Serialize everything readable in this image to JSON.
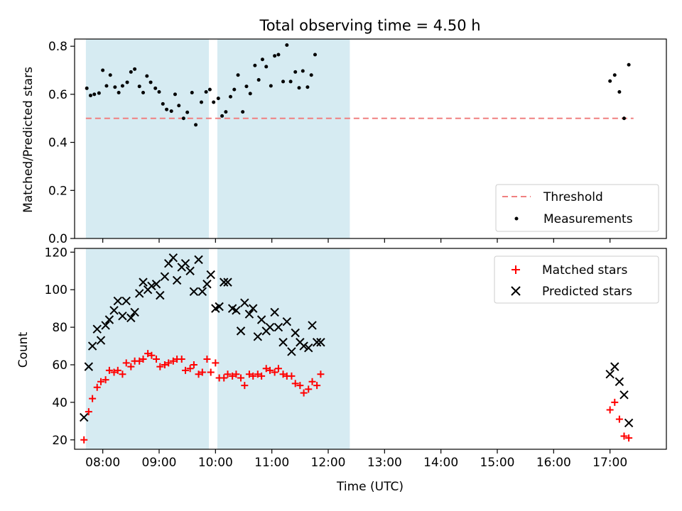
{
  "chart_data": [
    {
      "type": "scatter",
      "title": "Total observing time = 4.50 h",
      "ylabel": "Matched/Predicted stars",
      "xlabel": "",
      "xlim": [
        "07:30",
        "18:00"
      ],
      "ylim": [
        0,
        0.83
      ],
      "yticks": [
        "0.0",
        "0.2",
        "0.4",
        "0.6",
        "0.8"
      ],
      "yticks_values": [
        0,
        0.2,
        0.4,
        0.6,
        0.8
      ],
      "shaded_intervals": [
        [
          "07:42",
          "09:53"
        ],
        [
          "10:02",
          "12:23"
        ]
      ],
      "shade_color": "#add8e6",
      "legend_position": "lower-right",
      "threshold": {
        "name": "Threshold",
        "value": 0.5,
        "x_range": [
          "07:42",
          "17:25"
        ],
        "color": "#f08080"
      },
      "series": [
        {
          "name": "Measurements",
          "color": "#000000",
          "points": [
            [
              "07:43",
              0.625
            ],
            [
              "07:47",
              0.595
            ],
            [
              "07:51",
              0.6
            ],
            [
              "07:56",
              0.605
            ],
            [
              "08:00",
              0.7
            ],
            [
              "08:04",
              0.635
            ],
            [
              "08:08",
              0.68
            ],
            [
              "08:13",
              0.63
            ],
            [
              "08:17",
              0.607
            ],
            [
              "08:21",
              0.635
            ],
            [
              "08:26",
              0.65
            ],
            [
              "08:30",
              0.693
            ],
            [
              "08:34",
              0.705
            ],
            [
              "08:39",
              0.633
            ],
            [
              "08:43",
              0.607
            ],
            [
              "08:47",
              0.676
            ],
            [
              "08:51",
              0.65
            ],
            [
              "08:56",
              0.625
            ],
            [
              "09:00",
              0.61
            ],
            [
              "09:04",
              0.56
            ],
            [
              "09:08",
              0.537
            ],
            [
              "09:13",
              0.53
            ],
            [
              "09:17",
              0.6
            ],
            [
              "09:21",
              0.553
            ],
            [
              "09:26",
              0.5
            ],
            [
              "09:30",
              0.525
            ],
            [
              "09:35",
              0.607
            ],
            [
              "09:39",
              0.473
            ],
            [
              "09:45",
              0.567
            ],
            [
              "09:50",
              0.61
            ],
            [
              "09:54",
              0.62
            ],
            [
              "09:58",
              0.567
            ],
            [
              "10:03",
              0.583
            ],
            [
              "10:07",
              0.51
            ],
            [
              "10:11",
              0.527
            ],
            [
              "10:16",
              0.59
            ],
            [
              "10:20",
              0.62
            ],
            [
              "10:24",
              0.68
            ],
            [
              "10:29",
              0.527
            ],
            [
              "10:33",
              0.633
            ],
            [
              "10:37",
              0.603
            ],
            [
              "10:42",
              0.72
            ],
            [
              "10:46",
              0.66
            ],
            [
              "10:50",
              0.745
            ],
            [
              "10:54",
              0.715
            ],
            [
              "10:59",
              0.635
            ],
            [
              "11:03",
              0.76
            ],
            [
              "11:07",
              0.765
            ],
            [
              "11:12",
              0.653
            ],
            [
              "11:16",
              0.805
            ],
            [
              "11:20",
              0.653
            ],
            [
              "11:25",
              0.693
            ],
            [
              "11:29",
              0.627
            ],
            [
              "11:33",
              0.697
            ],
            [
              "11:38",
              0.63
            ],
            [
              "11:42",
              0.68
            ],
            [
              "11:46",
              0.765
            ],
            [
              "17:00",
              0.655
            ],
            [
              "17:05",
              0.68
            ],
            [
              "17:10",
              0.61
            ],
            [
              "17:15",
              0.5
            ],
            [
              "17:20",
              0.723
            ]
          ]
        }
      ]
    },
    {
      "type": "scatter",
      "title": "",
      "ylabel": "Count",
      "xlabel": "Time (UTC)",
      "xlim": [
        "07:30",
        "18:00"
      ],
      "ylim": [
        15,
        122
      ],
      "yticks": [
        "20",
        "40",
        "60",
        "80",
        "100",
        "120"
      ],
      "yticks_values": [
        20,
        40,
        60,
        80,
        100,
        120
      ],
      "xticks": [
        "08:00",
        "09:00",
        "10:00",
        "11:00",
        "12:00",
        "13:00",
        "14:00",
        "15:00",
        "16:00",
        "17:00"
      ],
      "shaded_intervals": [
        [
          "07:42",
          "09:53"
        ],
        [
          "10:02",
          "12:23"
        ]
      ],
      "shade_color": "#add8e6",
      "legend_position": "upper-right",
      "series": [
        {
          "name": "Matched stars",
          "marker": "plus",
          "color": "#ff0000",
          "points": [
            [
              "07:40",
              20
            ],
            [
              "07:45",
              35
            ],
            [
              "07:49",
              42
            ],
            [
              "07:54",
              48
            ],
            [
              "07:58",
              51
            ],
            [
              "08:03",
              52
            ],
            [
              "08:07",
              57
            ],
            [
              "08:12",
              56
            ],
            [
              "08:16",
              57
            ],
            [
              "08:21",
              55
            ],
            [
              "08:25",
              61
            ],
            [
              "08:30",
              59
            ],
            [
              "08:34",
              62
            ],
            [
              "08:39",
              62
            ],
            [
              "08:43",
              63
            ],
            [
              "08:48",
              66
            ],
            [
              "08:52",
              65
            ],
            [
              "08:57",
              63
            ],
            [
              "09:01",
              59
            ],
            [
              "09:06",
              60
            ],
            [
              "09:10",
              61
            ],
            [
              "09:15",
              62
            ],
            [
              "09:19",
              63
            ],
            [
              "09:24",
              63
            ],
            [
              "09:28",
              57
            ],
            [
              "09:33",
              58
            ],
            [
              "09:37",
              60
            ],
            [
              "09:42",
              55
            ],
            [
              "09:46",
              56
            ],
            [
              "09:51",
              63
            ],
            [
              "09:55",
              56
            ],
            [
              "10:00",
              61
            ],
            [
              "10:04",
              53
            ],
            [
              "10:09",
              53
            ],
            [
              "10:13",
              55
            ],
            [
              "10:18",
              54
            ],
            [
              "10:22",
              55
            ],
            [
              "10:27",
              53
            ],
            [
              "10:31",
              49
            ],
            [
              "10:36",
              55
            ],
            [
              "10:40",
              54
            ],
            [
              "10:45",
              55
            ],
            [
              "10:49",
              54
            ],
            [
              "10:54",
              58
            ],
            [
              "10:58",
              57
            ],
            [
              "11:03",
              56
            ],
            [
              "11:07",
              58
            ],
            [
              "11:12",
              55
            ],
            [
              "11:16",
              54
            ],
            [
              "11:21",
              54
            ],
            [
              "11:25",
              50
            ],
            [
              "11:30",
              49
            ],
            [
              "11:34",
              45
            ],
            [
              "11:39",
              47
            ],
            [
              "11:43",
              51
            ],
            [
              "11:48",
              49
            ],
            [
              "11:52",
              55
            ],
            [
              "17:00",
              36
            ],
            [
              "17:05",
              40
            ],
            [
              "17:10",
              31
            ],
            [
              "17:15",
              22
            ],
            [
              "17:20",
              21
            ]
          ]
        },
        {
          "name": "Predicted stars",
          "marker": "x",
          "color": "#000000",
          "points": [
            [
              "07:40",
              32
            ],
            [
              "07:45",
              59
            ],
            [
              "07:49",
              70
            ],
            [
              "07:54",
              79
            ],
            [
              "07:58",
              73
            ],
            [
              "08:03",
              81
            ],
            [
              "08:07",
              84
            ],
            [
              "08:12",
              89
            ],
            [
              "08:16",
              94
            ],
            [
              "08:21",
              86
            ],
            [
              "08:25",
              94
            ],
            [
              "08:30",
              85
            ],
            [
              "08:34",
              88
            ],
            [
              "08:39",
              98
            ],
            [
              "08:43",
              104
            ],
            [
              "08:48",
              100
            ],
            [
              "08:52",
              102
            ],
            [
              "08:57",
              103
            ],
            [
              "09:01",
              97
            ],
            [
              "09:06",
              107
            ],
            [
              "09:10",
              114
            ],
            [
              "09:15",
              117
            ],
            [
              "09:19",
              105
            ],
            [
              "09:24",
              112
            ],
            [
              "09:28",
              114
            ],
            [
              "09:33",
              110
            ],
            [
              "09:37",
              99
            ],
            [
              "09:42",
              116
            ],
            [
              "09:46",
              99
            ],
            [
              "09:51",
              103
            ],
            [
              "09:55",
              108
            ],
            [
              "10:00",
              90
            ],
            [
              "10:04",
              91
            ],
            [
              "10:09",
              104
            ],
            [
              "10:13",
              104
            ],
            [
              "10:18",
              90
            ],
            [
              "10:22",
              89
            ],
            [
              "10:27",
              78
            ],
            [
              "10:31",
              93
            ],
            [
              "10:36",
              87
            ],
            [
              "10:40",
              90
            ],
            [
              "10:45",
              75
            ],
            [
              "10:49",
              84
            ],
            [
              "10:54",
              78
            ],
            [
              "10:58",
              80
            ],
            [
              "11:03",
              88
            ],
            [
              "11:07",
              80
            ],
            [
              "11:12",
              72
            ],
            [
              "11:16",
              83
            ],
            [
              "11:21",
              67
            ],
            [
              "11:25",
              77
            ],
            [
              "11:30",
              72
            ],
            [
              "11:34",
              70
            ],
            [
              "11:39",
              69
            ],
            [
              "11:43",
              81
            ],
            [
              "11:48",
              72
            ],
            [
              "11:52",
              72
            ],
            [
              "17:00",
              55
            ],
            [
              "17:05",
              59
            ],
            [
              "17:10",
              51
            ],
            [
              "17:15",
              44
            ],
            [
              "17:20",
              29
            ]
          ]
        }
      ]
    }
  ]
}
